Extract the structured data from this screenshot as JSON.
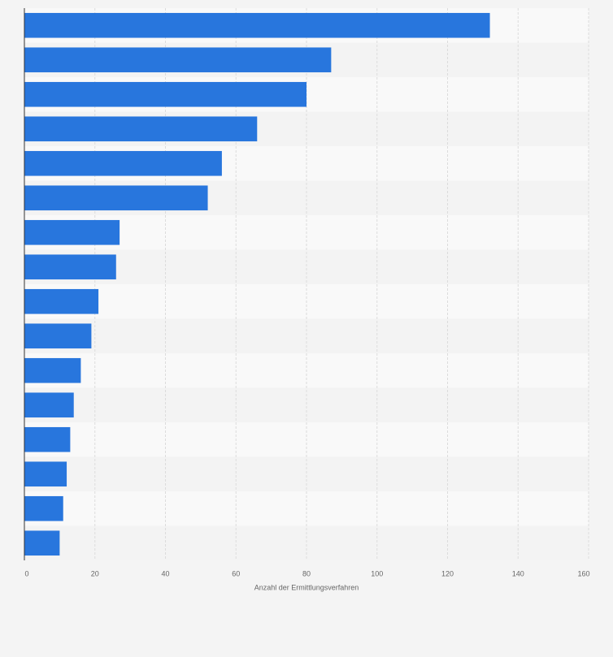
{
  "chart_data": {
    "type": "bar",
    "orientation": "horizontal",
    "xlabel": "Anzahl der Ermittlungsverfahren",
    "categories": [
      null,
      null,
      null,
      null,
      null,
      null,
      null,
      null,
      null,
      null,
      null,
      null,
      null,
      null,
      null,
      null
    ],
    "values": [
      132,
      87,
      80,
      66,
      56,
      52,
      27,
      26,
      21,
      19,
      16,
      14,
      13,
      12,
      11,
      10
    ],
    "color": "#2876dd",
    "xlim": [
      0,
      160
    ],
    "xticks": [
      0,
      20,
      40,
      60,
      80,
      100,
      120,
      140,
      160
    ],
    "grid": true
  }
}
